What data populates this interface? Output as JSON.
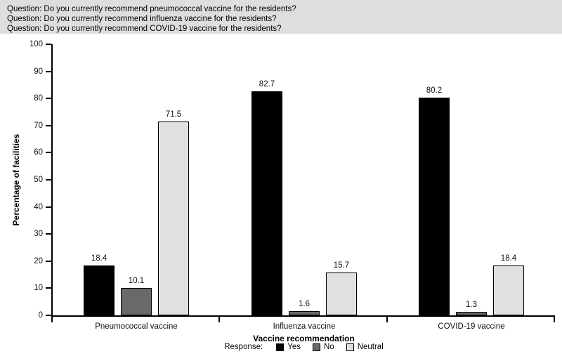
{
  "header": {
    "background": "#dedede",
    "questions": [
      "Question: Do you currently recommend pneumococcal vaccine for the residents?",
      "Question: Do you currently recommend influenza vaccine for the residents?",
      "Question: Do you currently recommend COVID-19 vaccine for the residents?"
    ]
  },
  "chart_data": {
    "type": "bar",
    "categories": [
      "Pneumococcal vaccine",
      "Influenza vaccine",
      "COVID-19 vaccine"
    ],
    "series": [
      {
        "name": "Yes",
        "color": "#000000",
        "values": [
          18.4,
          82.7,
          80.2
        ]
      },
      {
        "name": "No",
        "color": "#696969",
        "values": [
          10.1,
          1.6,
          1.3
        ]
      },
      {
        "name": "Neutral",
        "color": "#e0e0e0",
        "values": [
          71.5,
          15.7,
          18.4
        ]
      }
    ],
    "xlabel": "Vaccine recommendation",
    "ylabel": "Percentage of facilities",
    "ylim": [
      0,
      100
    ],
    "yticks": [
      0,
      10,
      20,
      30,
      40,
      50,
      60,
      70,
      80,
      90,
      100
    ],
    "legend_title": "Response:",
    "legend_position": "bottom",
    "grid": false,
    "bar_value_labels": true
  }
}
